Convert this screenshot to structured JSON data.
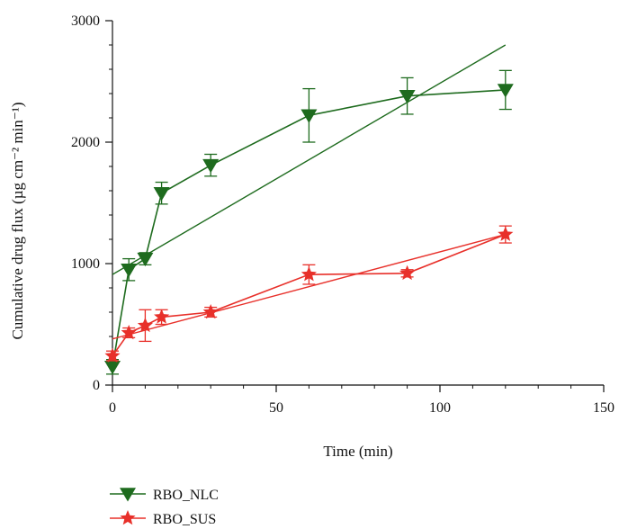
{
  "chart_data": {
    "type": "line",
    "xlabel": "Time (min)",
    "ylabel": "Cumulative drug flux (µg cm⁻² min⁻¹)",
    "xlim": [
      0,
      150
    ],
    "ylim": [
      0,
      3000
    ],
    "x_ticks": [
      0,
      50,
      100,
      150
    ],
    "y_ticks": [
      0,
      1000,
      2000,
      3000
    ],
    "x_tick_labels": [
      "0",
      "50",
      "100",
      "150"
    ],
    "y_tick_labels": [
      "0",
      "1000",
      "2000",
      "3000"
    ],
    "grid": false,
    "legend_position": "bottom-left",
    "series": [
      {
        "name": "RBO_NLC",
        "color": "#1e6b1e",
        "marker": "triangle-down",
        "x": [
          0,
          5,
          10,
          15,
          30,
          60,
          90,
          120
        ],
        "y": [
          150,
          950,
          1040,
          1580,
          1810,
          2220,
          2380,
          2430
        ],
        "err": [
          60,
          90,
          50,
          90,
          90,
          220,
          150,
          160
        ],
        "fit": {
          "x": [
            0,
            120
          ],
          "y": [
            910,
            2800
          ]
        }
      },
      {
        "name": "RBO_SUS",
        "color": "#e8302a",
        "marker": "star",
        "x": [
          0,
          5,
          10,
          15,
          30,
          60,
          90,
          120
        ],
        "y": [
          240,
          430,
          490,
          560,
          600,
          910,
          920,
          1240
        ],
        "err": [
          40,
          40,
          130,
          60,
          40,
          80,
          30,
          70
        ],
        "fit": {
          "x": [
            0,
            120
          ],
          "y": [
            380,
            1240
          ]
        }
      }
    ]
  }
}
